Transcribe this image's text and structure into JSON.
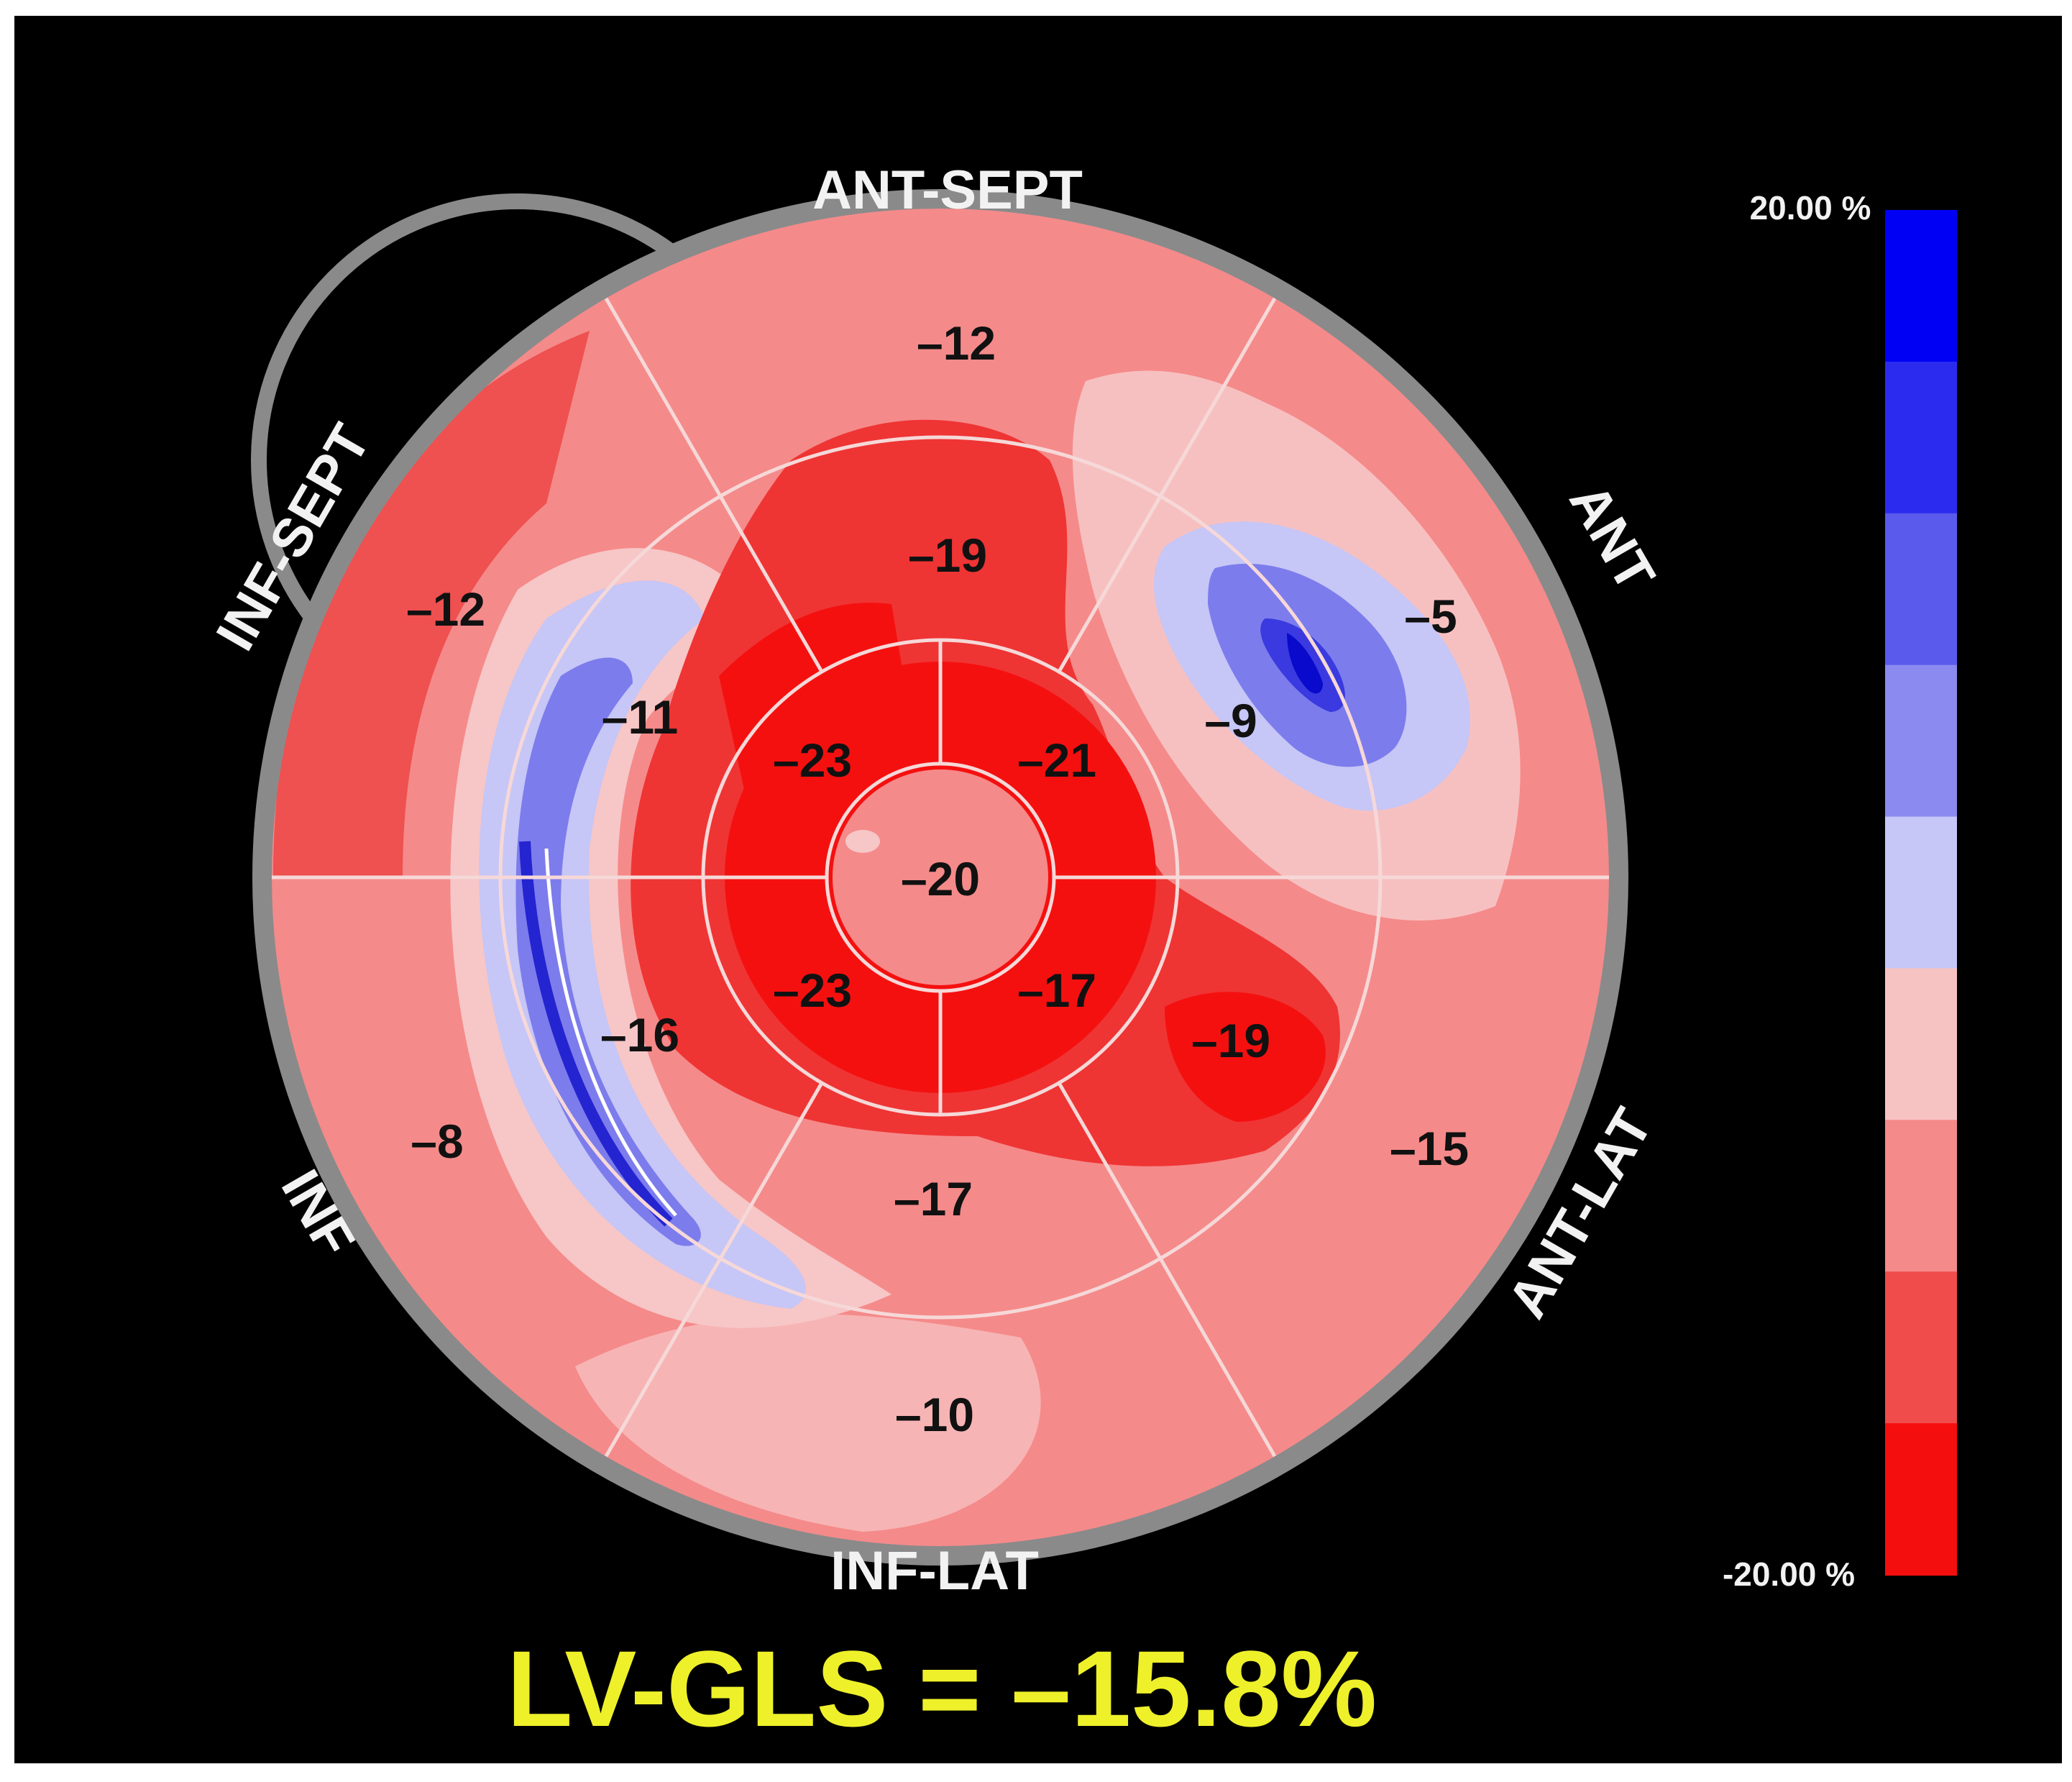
{
  "region_labels": {
    "ant_sept": "ANT-SEPT",
    "ant": "ANT",
    "ant_lat": "ANT-LAT",
    "inf_lat": "INF-LAT",
    "inf": "INF",
    "inf_sept": "INF-SEPT"
  },
  "segments": {
    "basal_ant_sept": "–12",
    "basal_inf_sept": "–12",
    "basal_inf": "–8",
    "basal_inf_lat": "–10",
    "basal_ant_lat": "–15",
    "basal_ant": "–5",
    "mid_ant_sept": "–19",
    "mid_ant": "–9",
    "mid_inf_sept": "–11",
    "mid_inf": "–16",
    "mid_inf_lat": "–17",
    "mid_ant_lat": "–19",
    "apical_sept": "–23",
    "apical_ant": "–21",
    "apical_inf": "–23",
    "apical_lat": "–17",
    "apex": "–20"
  },
  "scale": {
    "max_label": "20.00 %",
    "min_label": "-20.00 %",
    "colors": [
      "#0000f5",
      "#2b2bf0",
      "#5a5aec",
      "#8a8af0",
      "#c6c6f7",
      "#f7c2c2",
      "#f58a8a",
      "#f04c4c",
      "#f50e0e"
    ]
  },
  "gls_label": "LV-GLS = –15.8%",
  "colors": {
    "background": "#000000",
    "frame": "#ffffff",
    "ring": "#8a8a8a",
    "gls_text": "#eef02a",
    "label_text": "#f2f2f2"
  }
}
